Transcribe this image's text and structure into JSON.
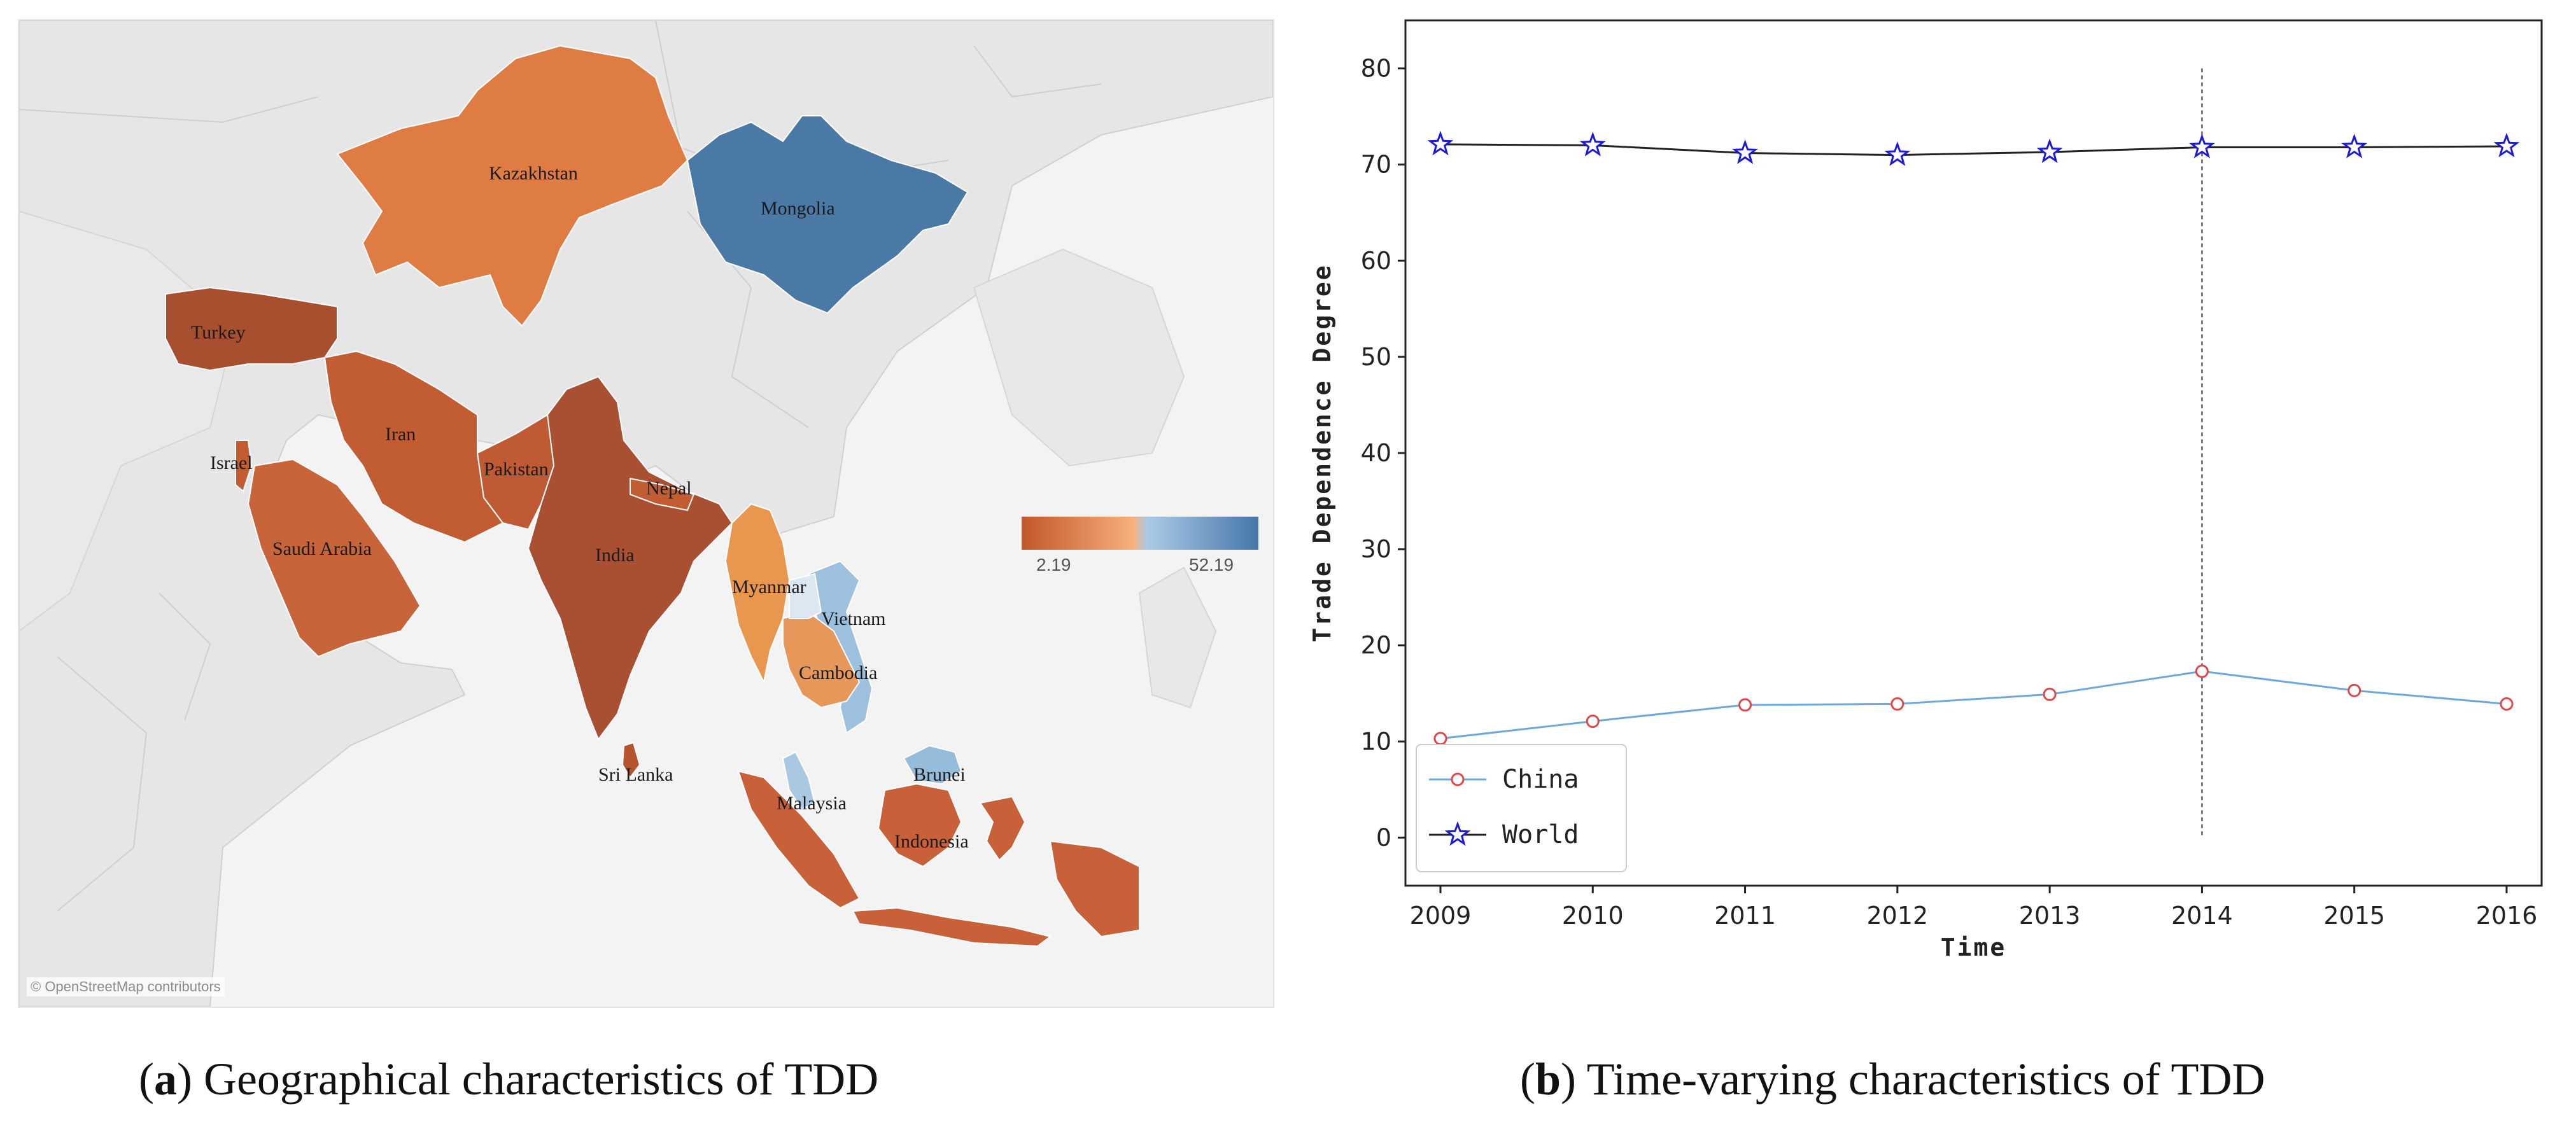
{
  "map": {
    "credit": "© OpenStreetMap contributors",
    "legend": {
      "min": "2.19",
      "max": "52.19",
      "low_color": "#c2562a",
      "mid_color": "#f7b07a",
      "high_color": "#4576a8"
    },
    "countries": [
      {
        "name": "Kazakhstan",
        "color": "#de7c44"
      },
      {
        "name": "Mongolia",
        "color": "#4a79a5"
      },
      {
        "name": "Turkey",
        "color": "#a84f2f"
      },
      {
        "name": "Iran",
        "color": "#c25d33"
      },
      {
        "name": "Israel",
        "color": "#c45c31"
      },
      {
        "name": "Saudi Arabia",
        "color": "#c8643a"
      },
      {
        "name": "Pakistan",
        "color": "#bf5a34"
      },
      {
        "name": "Nepal",
        "color": "#c25d33"
      },
      {
        "name": "India",
        "color": "#a95032"
      },
      {
        "name": "Myanmar",
        "color": "#e9964f"
      },
      {
        "name": "Vietnam",
        "color": "#9dc0de"
      },
      {
        "name": "Cambodia",
        "color": "#e8975a"
      },
      {
        "name": "Sri Lanka",
        "color": "#b4552e"
      },
      {
        "name": "Malaysia",
        "color": "#a9c8e2"
      },
      {
        "name": "Brunei",
        "color": "#96bcdc"
      },
      {
        "name": "Indonesia",
        "color": "#c8613a"
      }
    ]
  },
  "chart_data": {
    "type": "line",
    "title": "",
    "xlabel": "Time",
    "ylabel": "Trade Dependence Degree",
    "x": [
      2009,
      2010,
      2011,
      2012,
      2013,
      2014,
      2015,
      2016
    ],
    "ylim": [
      -5,
      85
    ],
    "yticks": [
      0,
      10,
      20,
      30,
      40,
      50,
      60,
      70,
      80
    ],
    "vline_x": 2014,
    "legend_position": "lower-left",
    "series": [
      {
        "name": "China",
        "values": [
          10.3,
          12.1,
          13.8,
          13.9,
          14.9,
          17.3,
          15.3,
          13.9
        ],
        "color": "#6ea8d8",
        "marker": "circle",
        "marker_color": "#e04848"
      },
      {
        "name": "World",
        "values": [
          72.1,
          72.0,
          71.2,
          71.0,
          71.3,
          71.8,
          71.8,
          71.9
        ],
        "color": "#222222",
        "marker": "star",
        "marker_color": "#1a1ad8"
      }
    ]
  },
  "captions": {
    "a_letter": "a",
    "a_text": " Geographical characteristics of TDD",
    "b_letter": "b",
    "b_text": " Time-varying characteristics of TDD"
  }
}
